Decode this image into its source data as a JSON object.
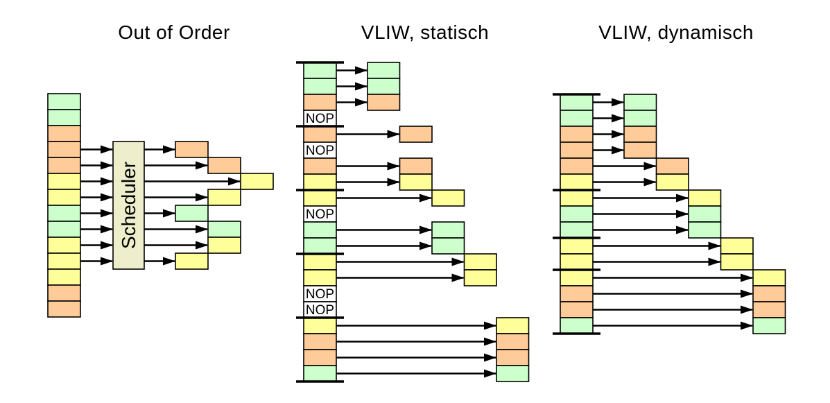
{
  "labels": {
    "nop": "NOP",
    "scheduler": "Scheduler"
  },
  "colors": {
    "green": "#ccffcc",
    "orange": "#ffcc99",
    "yellow": "#ffff99",
    "nop_bg": "#ffffff",
    "scheduler_bg": "#eeeecc",
    "line": "#000000",
    "background": "#ffffff"
  },
  "panels": [
    {
      "id": "out-of-order",
      "title": "Out of Order",
      "type": "scheduler",
      "stack": [
        "green",
        "green",
        "orange",
        "orange",
        "orange",
        "yellow",
        "yellow",
        "green",
        "green",
        "yellow",
        "yellow",
        "yellow",
        "orange",
        "orange"
      ],
      "separators_after_rows": [],
      "issues": [
        {
          "row": 3,
          "col": 0
        },
        {
          "row": 4,
          "col": 1
        },
        {
          "row": 5,
          "col": 2
        },
        {
          "row": 6,
          "col": 1
        },
        {
          "row": 7,
          "col": 0
        },
        {
          "row": 8,
          "col": 1
        },
        {
          "row": 9,
          "col": 1
        },
        {
          "row": 10,
          "col": 0
        }
      ]
    },
    {
      "id": "vliw-static",
      "title": "VLIW, statisch",
      "type": "vliw",
      "stack": [
        "green",
        "green",
        "orange",
        "NOP",
        "orange",
        "NOP",
        "orange",
        "yellow",
        "yellow",
        "NOP",
        "green",
        "green",
        "yellow",
        "yellow",
        "NOP",
        "NOP",
        "yellow",
        "orange",
        "orange",
        "green"
      ],
      "separators_after_rows": [
        -1,
        3,
        7,
        11,
        15,
        19
      ],
      "issues": [
        {
          "row": 0,
          "col": 0
        },
        {
          "row": 1,
          "col": 0
        },
        {
          "row": 2,
          "col": 0
        },
        {
          "row": 4,
          "col": 1
        },
        {
          "row": 6,
          "col": 1
        },
        {
          "row": 7,
          "col": 1
        },
        {
          "row": 8,
          "col": 2
        },
        {
          "row": 10,
          "col": 2
        },
        {
          "row": 11,
          "col": 2
        },
        {
          "row": 12,
          "col": 3
        },
        {
          "row": 13,
          "col": 3
        },
        {
          "row": 16,
          "col": 4
        },
        {
          "row": 17,
          "col": 4
        },
        {
          "row": 18,
          "col": 4
        },
        {
          "row": 19,
          "col": 4
        }
      ]
    },
    {
      "id": "vliw-dynamic",
      "title": "VLIW, dynamisch",
      "type": "vliw",
      "stack": [
        "green",
        "green",
        "orange",
        "orange",
        "orange",
        "yellow",
        "yellow",
        "green",
        "green",
        "yellow",
        "yellow",
        "yellow",
        "orange",
        "orange",
        "green"
      ],
      "separators_after_rows": [
        -1,
        5,
        8,
        10,
        14
      ],
      "issues": [
        {
          "row": 0,
          "col": 0
        },
        {
          "row": 1,
          "col": 0
        },
        {
          "row": 2,
          "col": 0
        },
        {
          "row": 3,
          "col": 0
        },
        {
          "row": 4,
          "col": 1
        },
        {
          "row": 5,
          "col": 1
        },
        {
          "row": 6,
          "col": 2
        },
        {
          "row": 7,
          "col": 2
        },
        {
          "row": 8,
          "col": 2
        },
        {
          "row": 9,
          "col": 3
        },
        {
          "row": 10,
          "col": 3
        },
        {
          "row": 11,
          "col": 4
        },
        {
          "row": 12,
          "col": 4
        },
        {
          "row": 13,
          "col": 4
        },
        {
          "row": 14,
          "col": 4
        }
      ]
    }
  ]
}
